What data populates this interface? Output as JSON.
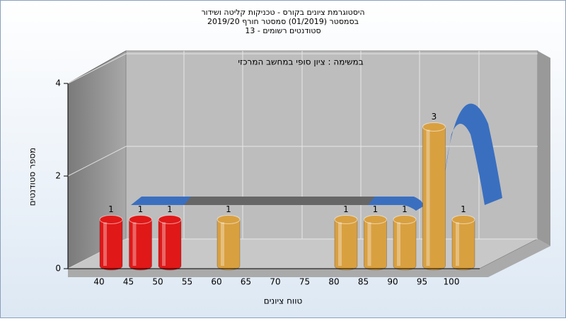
{
  "chart_data": {
    "type": "bar",
    "title": "היסטוגרמת ציונים בקורס - טכניקות קליטה ושידור",
    "subtitle": "בסמסטר  (01/2019)  סמסטר חורף 2019/20",
    "subtitle2": "סטודנטים רשומים - 13",
    "annotation": "במשימה : ציון סופי במחשב המרכזי",
    "x_label": "טווח ציונים",
    "y_label": "מספר סטודנטים",
    "categories": [
      "40",
      "45",
      "50",
      "55",
      "60",
      "65",
      "70",
      "75",
      "80",
      "85",
      "90",
      "95",
      "100"
    ],
    "values": [
      1,
      1,
      1,
      0,
      1,
      0,
      0,
      0,
      1,
      1,
      1,
      3,
      1
    ],
    "colors": [
      "#e01818",
      "#e01818",
      "#e01818",
      "#d9a040",
      "#d9a040",
      "#d9a040",
      "#d9a040",
      "#d9a040",
      "#d9a040",
      "#d9a040",
      "#d9a040",
      "#d9a040",
      "#d9a040"
    ],
    "ylim": [
      0,
      4
    ],
    "yticks": [
      0,
      2,
      4
    ],
    "grid": true
  }
}
